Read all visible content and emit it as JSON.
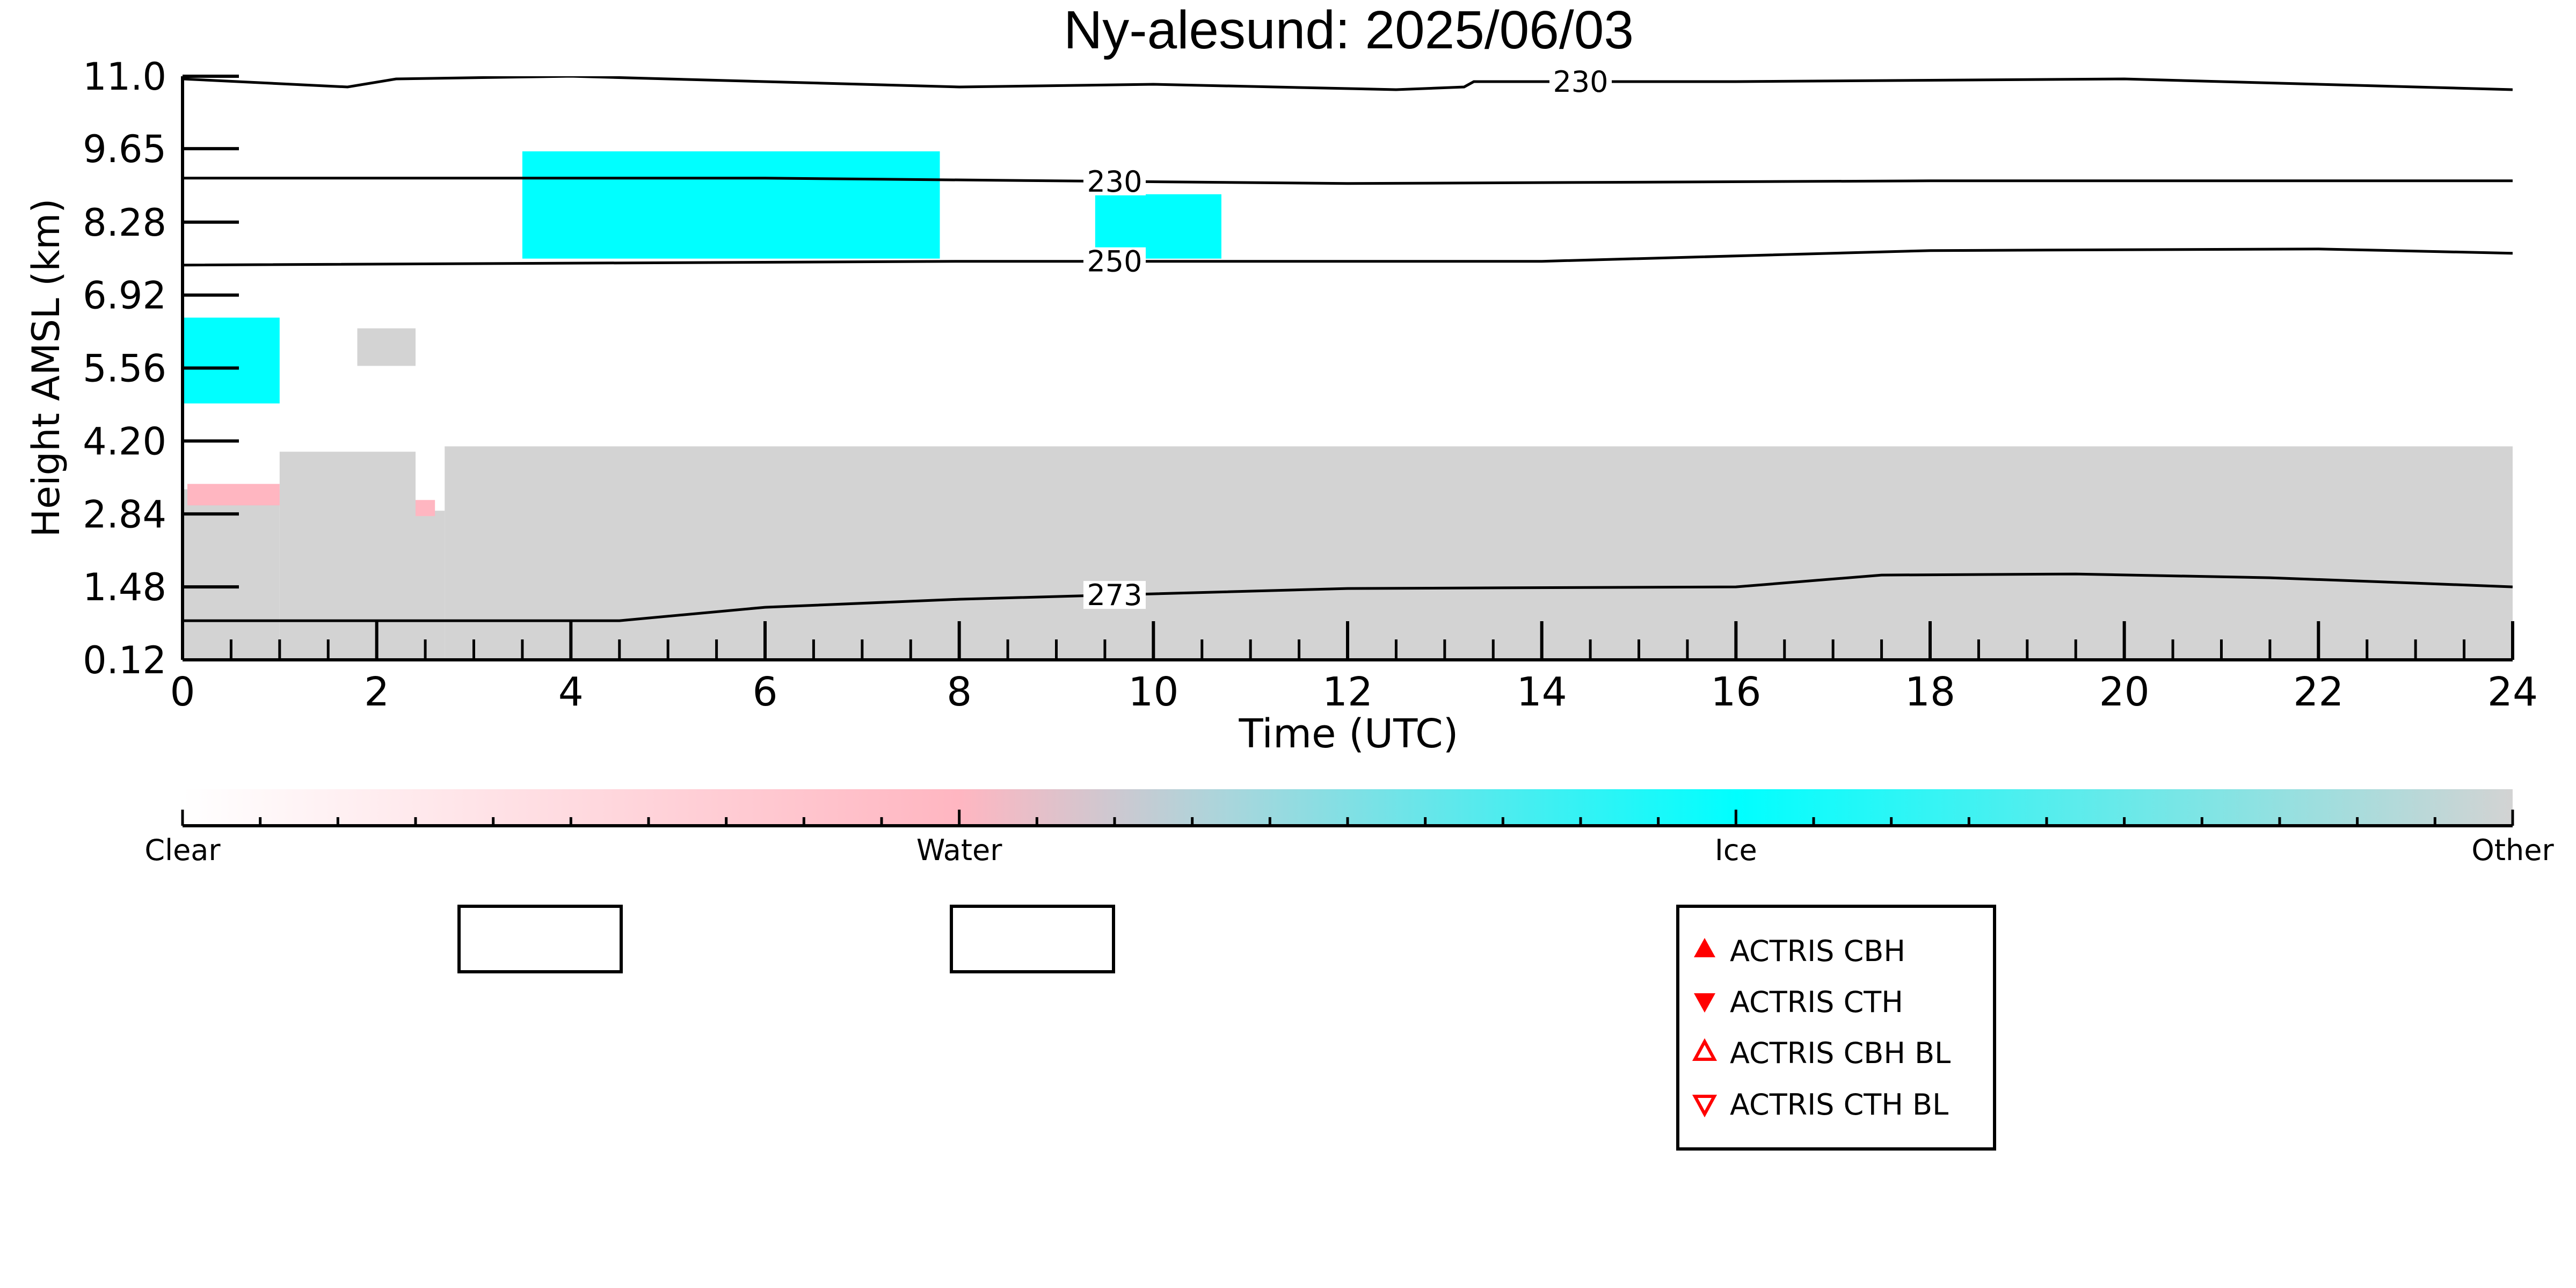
{
  "chart_data": {
    "type": "heatmap",
    "title": "Ny-alesund: 2025/06/03",
    "xlabel": "Time (UTC)",
    "ylabel": "Height AMSL (km)",
    "xlim": [
      0,
      24
    ],
    "ylim": [
      0.12,
      11.0
    ],
    "x_ticks": [
      "0",
      "2",
      "4",
      "6",
      "8",
      "10",
      "12",
      "14",
      "16",
      "18",
      "20",
      "22",
      "24"
    ],
    "y_ticks": [
      "0.12",
      "1.48",
      "2.84",
      "4.20",
      "5.56",
      "6.92",
      "8.28",
      "9.65",
      "11.0"
    ],
    "colorbar": {
      "ticks": [
        {
          "label": "Clear",
          "value": 0
        },
        {
          "label": "Water",
          "value": 1
        },
        {
          "label": "Ice",
          "value": 2
        },
        {
          "label": "Other",
          "value": 3
        }
      ],
      "colors": {
        "Clear": "#ffffff",
        "Water": "#ffb6c1",
        "Ice": "#00ffff",
        "Other": "#d3d3d3"
      }
    },
    "regions": [
      {
        "class": "Other",
        "t0": 0.0,
        "t1": 1.0,
        "z0": 0.12,
        "z1": 3.3
      },
      {
        "class": "Other",
        "t0": 1.0,
        "t1": 2.4,
        "z0": 0.12,
        "z1": 4.0
      },
      {
        "class": "Other",
        "t0": 2.4,
        "t1": 2.7,
        "z0": 0.12,
        "z1": 2.9
      },
      {
        "class": "Other",
        "t0": 2.7,
        "t1": 24.0,
        "z0": 0.12,
        "z1": 4.1
      },
      {
        "class": "Other",
        "t0": 1.8,
        "t1": 2.4,
        "z0": 5.6,
        "z1": 6.3
      },
      {
        "class": "Ice",
        "t0": 0.0,
        "t1": 1.0,
        "z0": 4.9,
        "z1": 6.5
      },
      {
        "class": "Ice",
        "t0": 3.5,
        "t1": 7.8,
        "z0": 7.6,
        "z1": 9.6
      },
      {
        "class": "Ice",
        "t0": 9.4,
        "t1": 10.7,
        "z0": 7.6,
        "z1": 8.8
      },
      {
        "class": "Water",
        "t0": 0.05,
        "t1": 1.0,
        "z0": 3.0,
        "z1": 3.4
      },
      {
        "class": "Water",
        "t0": 2.4,
        "t1": 2.6,
        "z0": 2.8,
        "z1": 3.1
      }
    ],
    "contours": [
      {
        "label": "230",
        "points": [
          [
            0,
            10.95
          ],
          [
            1.7,
            10.8
          ],
          [
            2.2,
            10.95
          ],
          [
            4,
            11.0
          ],
          [
            8,
            10.8
          ],
          [
            10,
            10.85
          ],
          [
            12.5,
            10.75
          ],
          [
            13.2,
            10.8
          ],
          [
            13.3,
            10.9
          ],
          [
            16,
            10.9
          ],
          [
            20,
            10.95
          ],
          [
            24,
            10.75
          ]
        ]
      },
      {
        "label": "230",
        "points": [
          [
            0,
            9.1
          ],
          [
            6,
            9.1
          ],
          [
            12,
            9.0
          ],
          [
            18,
            9.05
          ],
          [
            24,
            9.05
          ]
        ]
      },
      {
        "label": "250",
        "points": [
          [
            0,
            7.48
          ],
          [
            8,
            7.55
          ],
          [
            14,
            7.55
          ],
          [
            18,
            7.75
          ],
          [
            22,
            7.78
          ],
          [
            24,
            7.7
          ]
        ]
      },
      {
        "label": "273",
        "points": [
          [
            0,
            0.85
          ],
          [
            4.5,
            0.85
          ],
          [
            6,
            1.1
          ],
          [
            8,
            1.25
          ],
          [
            12,
            1.45
          ],
          [
            16,
            1.48
          ],
          [
            17.5,
            1.7
          ],
          [
            19.5,
            1.72
          ],
          [
            21.5,
            1.65
          ],
          [
            23,
            1.55
          ],
          [
            24,
            1.48
          ]
        ]
      }
    ],
    "legend": {
      "placement": "bottom-center",
      "entries": [
        {
          "label": "ACTRIS CBH",
          "marker": "triangle-up-filled",
          "color": "#ff0000"
        },
        {
          "label": "ACTRIS CTH",
          "marker": "triangle-down-filled",
          "color": "#ff0000"
        },
        {
          "label": "ACTRIS CBH BL",
          "marker": "triangle-up-open",
          "color": "#ff0000"
        },
        {
          "label": "ACTRIS CTH BL",
          "marker": "triangle-down-open",
          "color": "#ff0000"
        }
      ]
    },
    "grid": false
  }
}
